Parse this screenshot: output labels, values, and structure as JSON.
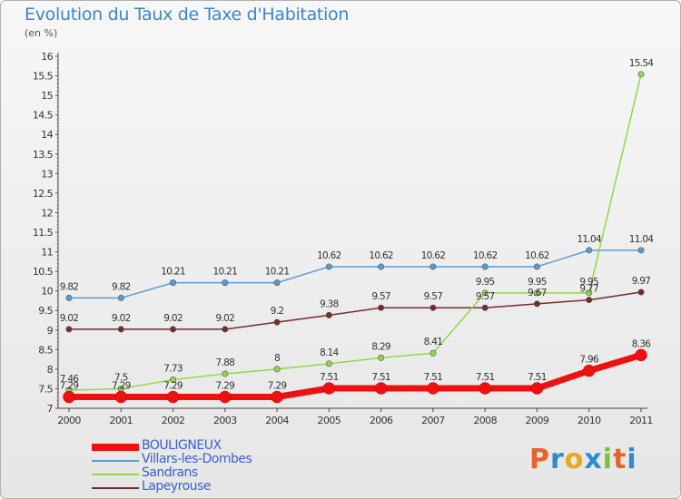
{
  "header": {
    "title": "Evolution du Taux de Taxe d'Habitation",
    "subtitle": "(en %)"
  },
  "logo": {
    "text": "Proxiti",
    "colors": [
      "#e8622a",
      "#2e8bd0",
      "#e8a71c",
      "#2e8bd0",
      "#7bbf3a",
      "#e8622a",
      "#2e8bd0"
    ]
  },
  "chart_data": {
    "type": "line",
    "title": "Evolution du Taux de Taxe d'Habitation",
    "ylabel": "(en %)",
    "xlabel": "",
    "x": [
      "2000",
      "2001",
      "2002",
      "2003",
      "2004",
      "2005",
      "2006",
      "2007",
      "2008",
      "2009",
      "2010",
      "2011"
    ],
    "ylim": [
      7,
      16
    ],
    "yticks": [
      "7",
      "7.5",
      "8",
      "8.5",
      "9",
      "9.5",
      "10",
      "10.5",
      "11",
      "11.5",
      "12",
      "12.5",
      "13",
      "13.5",
      "14",
      "14.5",
      "15",
      "15.5",
      "16"
    ],
    "grid": false,
    "legend_position": "bottom-left",
    "series": [
      {
        "name": "BOULIGNEUX",
        "color": "#ee1111",
        "width": 7,
        "values": [
          7.29,
          7.29,
          7.29,
          7.29,
          7.29,
          7.51,
          7.51,
          7.51,
          7.51,
          7.51,
          7.96,
          8.36
        ],
        "labels": [
          "7.29",
          "7.29",
          "7.29",
          "7.29",
          "7.29",
          "7.51",
          "7.51",
          "7.51",
          "7.51",
          "7.51",
          "7.96",
          "8.36"
        ]
      },
      {
        "name": "Villars-les-Dombes",
        "color": "#5b9bd5",
        "width": 1.5,
        "values": [
          9.82,
          9.82,
          10.21,
          10.21,
          10.21,
          10.62,
          10.62,
          10.62,
          10.62,
          10.62,
          11.04,
          11.04
        ],
        "labels": [
          "9.82",
          "9.82",
          "10.21",
          "10.21",
          "10.21",
          "10.62",
          "10.62",
          "10.62",
          "10.62",
          "10.62",
          "11.04",
          "11.04"
        ]
      },
      {
        "name": "Sandrans",
        "color": "#8fd84a",
        "width": 1.5,
        "values": [
          7.46,
          7.5,
          7.73,
          7.88,
          8,
          8.14,
          8.29,
          8.41,
          9.95,
          9.95,
          9.95,
          15.54
        ],
        "labels": [
          "7.46",
          "7.5",
          "7.73",
          "7.88",
          "8",
          "8.14",
          "8.29",
          "8.41",
          "9.95",
          "9.95",
          "9.95",
          "15.54"
        ]
      },
      {
        "name": "Lapeyrouse",
        "color": "#7a2a2a",
        "width": 1.5,
        "values": [
          9.02,
          9.02,
          9.02,
          9.02,
          9.2,
          9.38,
          9.57,
          9.57,
          9.57,
          9.67,
          9.77,
          9.97
        ],
        "labels": [
          "9.02",
          "9.02",
          "9.02",
          "9.02",
          "9.2",
          "9.38",
          "9.57",
          "9.57",
          "9.57",
          "9.67",
          "9.77",
          "9.97"
        ]
      }
    ]
  }
}
